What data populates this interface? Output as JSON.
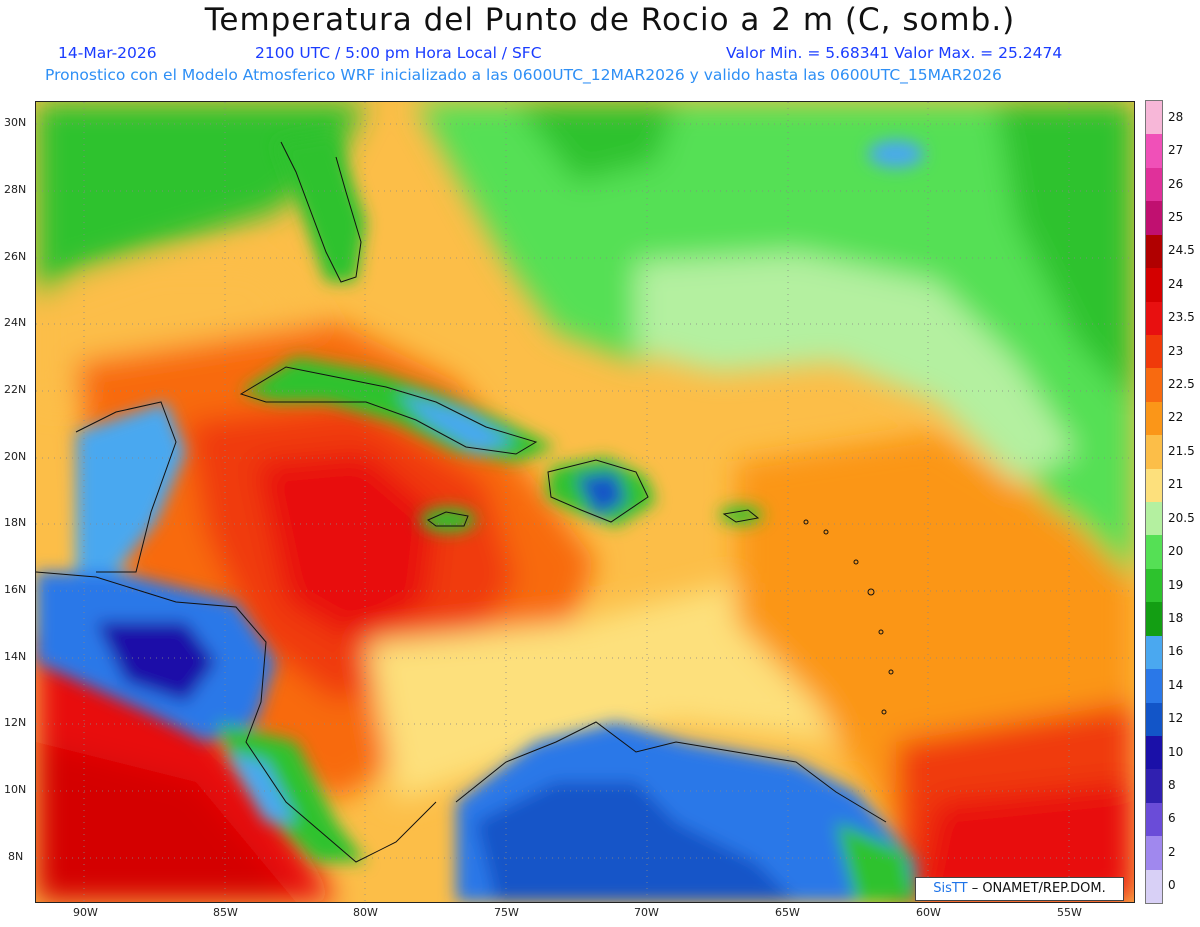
{
  "header": {
    "title": "Temperatura del Punto de Rocio a 2 m (C, somb.)",
    "date": "14-Mar-2026",
    "time": "2100 UTC / 5:00 pm Hora Local / SFC",
    "minmax": "Valor Min. = 5.68341  Valor Max. = 25.2474",
    "model": "Pronostico con el Modelo Atmosferico WRF inicializado a las 0600UTC_12MAR2026 y valido hasta las  0600UTC_15MAR2026"
  },
  "map": {
    "lat_labels": [
      "30N",
      "28N",
      "26N",
      "24N",
      "22N",
      "20N",
      "18N",
      "16N",
      "14N",
      "12N",
      "10N",
      "8N"
    ],
    "lon_labels": [
      "90W",
      "85W",
      "80W",
      "75W",
      "70W",
      "65W",
      "60W",
      "55W"
    ],
    "lat_range": [
      6.8,
      30.6
    ],
    "lon_range": [
      -92,
      -53
    ]
  },
  "colorbar": {
    "labels": [
      "28",
      "27",
      "26",
      "25",
      "24.5",
      "24",
      "23.5",
      "23",
      "22.5",
      "22",
      "21.5",
      "21",
      "20.5",
      "20",
      "19",
      "18",
      "16",
      "14",
      "12",
      "10",
      "8",
      "6",
      "2",
      "0"
    ],
    "colors": [
      "#f7b7d8",
      "#f050b8",
      "#e0309a",
      "#c01070",
      "#b00000",
      "#d40000",
      "#e81010",
      "#f03a0a",
      "#f86a10",
      "#fb9618",
      "#fcbe48",
      "#fde07c",
      "#b4f0a0",
      "#55e055",
      "#2dc22d",
      "#139e13",
      "#4aa8f0",
      "#2a78e8",
      "#1255c8",
      "#1a10a8",
      "#3020b0",
      "#6a4cd8",
      "#a088ee",
      "#d8d0f6"
    ]
  },
  "credit": {
    "brand": "SisTT",
    "text": " – ONAMET/REP.DOM."
  }
}
